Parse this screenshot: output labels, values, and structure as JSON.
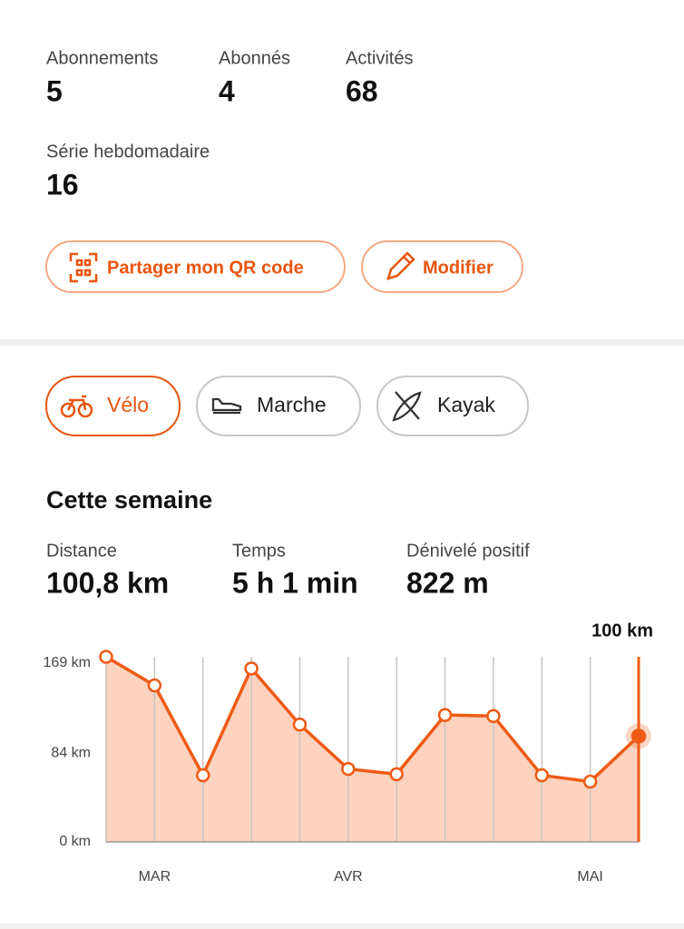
{
  "stats": [
    {
      "label": "Abonnements",
      "value": 5
    },
    {
      "label": "Abonnés",
      "value": 4
    },
    {
      "label": "Activités",
      "value": 68
    }
  ],
  "streak": {
    "label": "Série hebdomadaire",
    "value": 16
  },
  "buttons": [
    "Partager mon QR code",
    "Modifier"
  ],
  "sports": [
    "Vélo",
    "Marche",
    "Kayak"
  ],
  "week": {
    "title": "Cette semaine",
    "stats": [
      {
        "label": "Distance",
        "value": "100,8 km"
      },
      {
        "label": "Temps",
        "value": "5 h 1 min"
      },
      {
        "label": "Dénivelé positif",
        "value": "822 m"
      }
    ]
  },
  "chart_data": {
    "type": "area",
    "categories": [
      null,
      "MAR",
      null,
      null,
      null,
      "AVR",
      null,
      null,
      null,
      null,
      "MAI",
      null
    ],
    "values": [
      175,
      148,
      63,
      164,
      111,
      69,
      64,
      120,
      119,
      63,
      57,
      100
    ],
    "value_labels": [
      null,
      null,
      null,
      null,
      null,
      null,
      null,
      null,
      null,
      null,
      null,
      "100 km"
    ],
    "color": "#ef5a14",
    "fill_color": "#fdd3bf",
    "grid": true,
    "ylim": [
      0,
      175
    ],
    "yticks": [
      {
        "value": 0,
        "label": "0 km"
      },
      {
        "value": 84,
        "label": "84 km"
      },
      {
        "value": 169,
        "label": "169 km"
      }
    ]
  }
}
